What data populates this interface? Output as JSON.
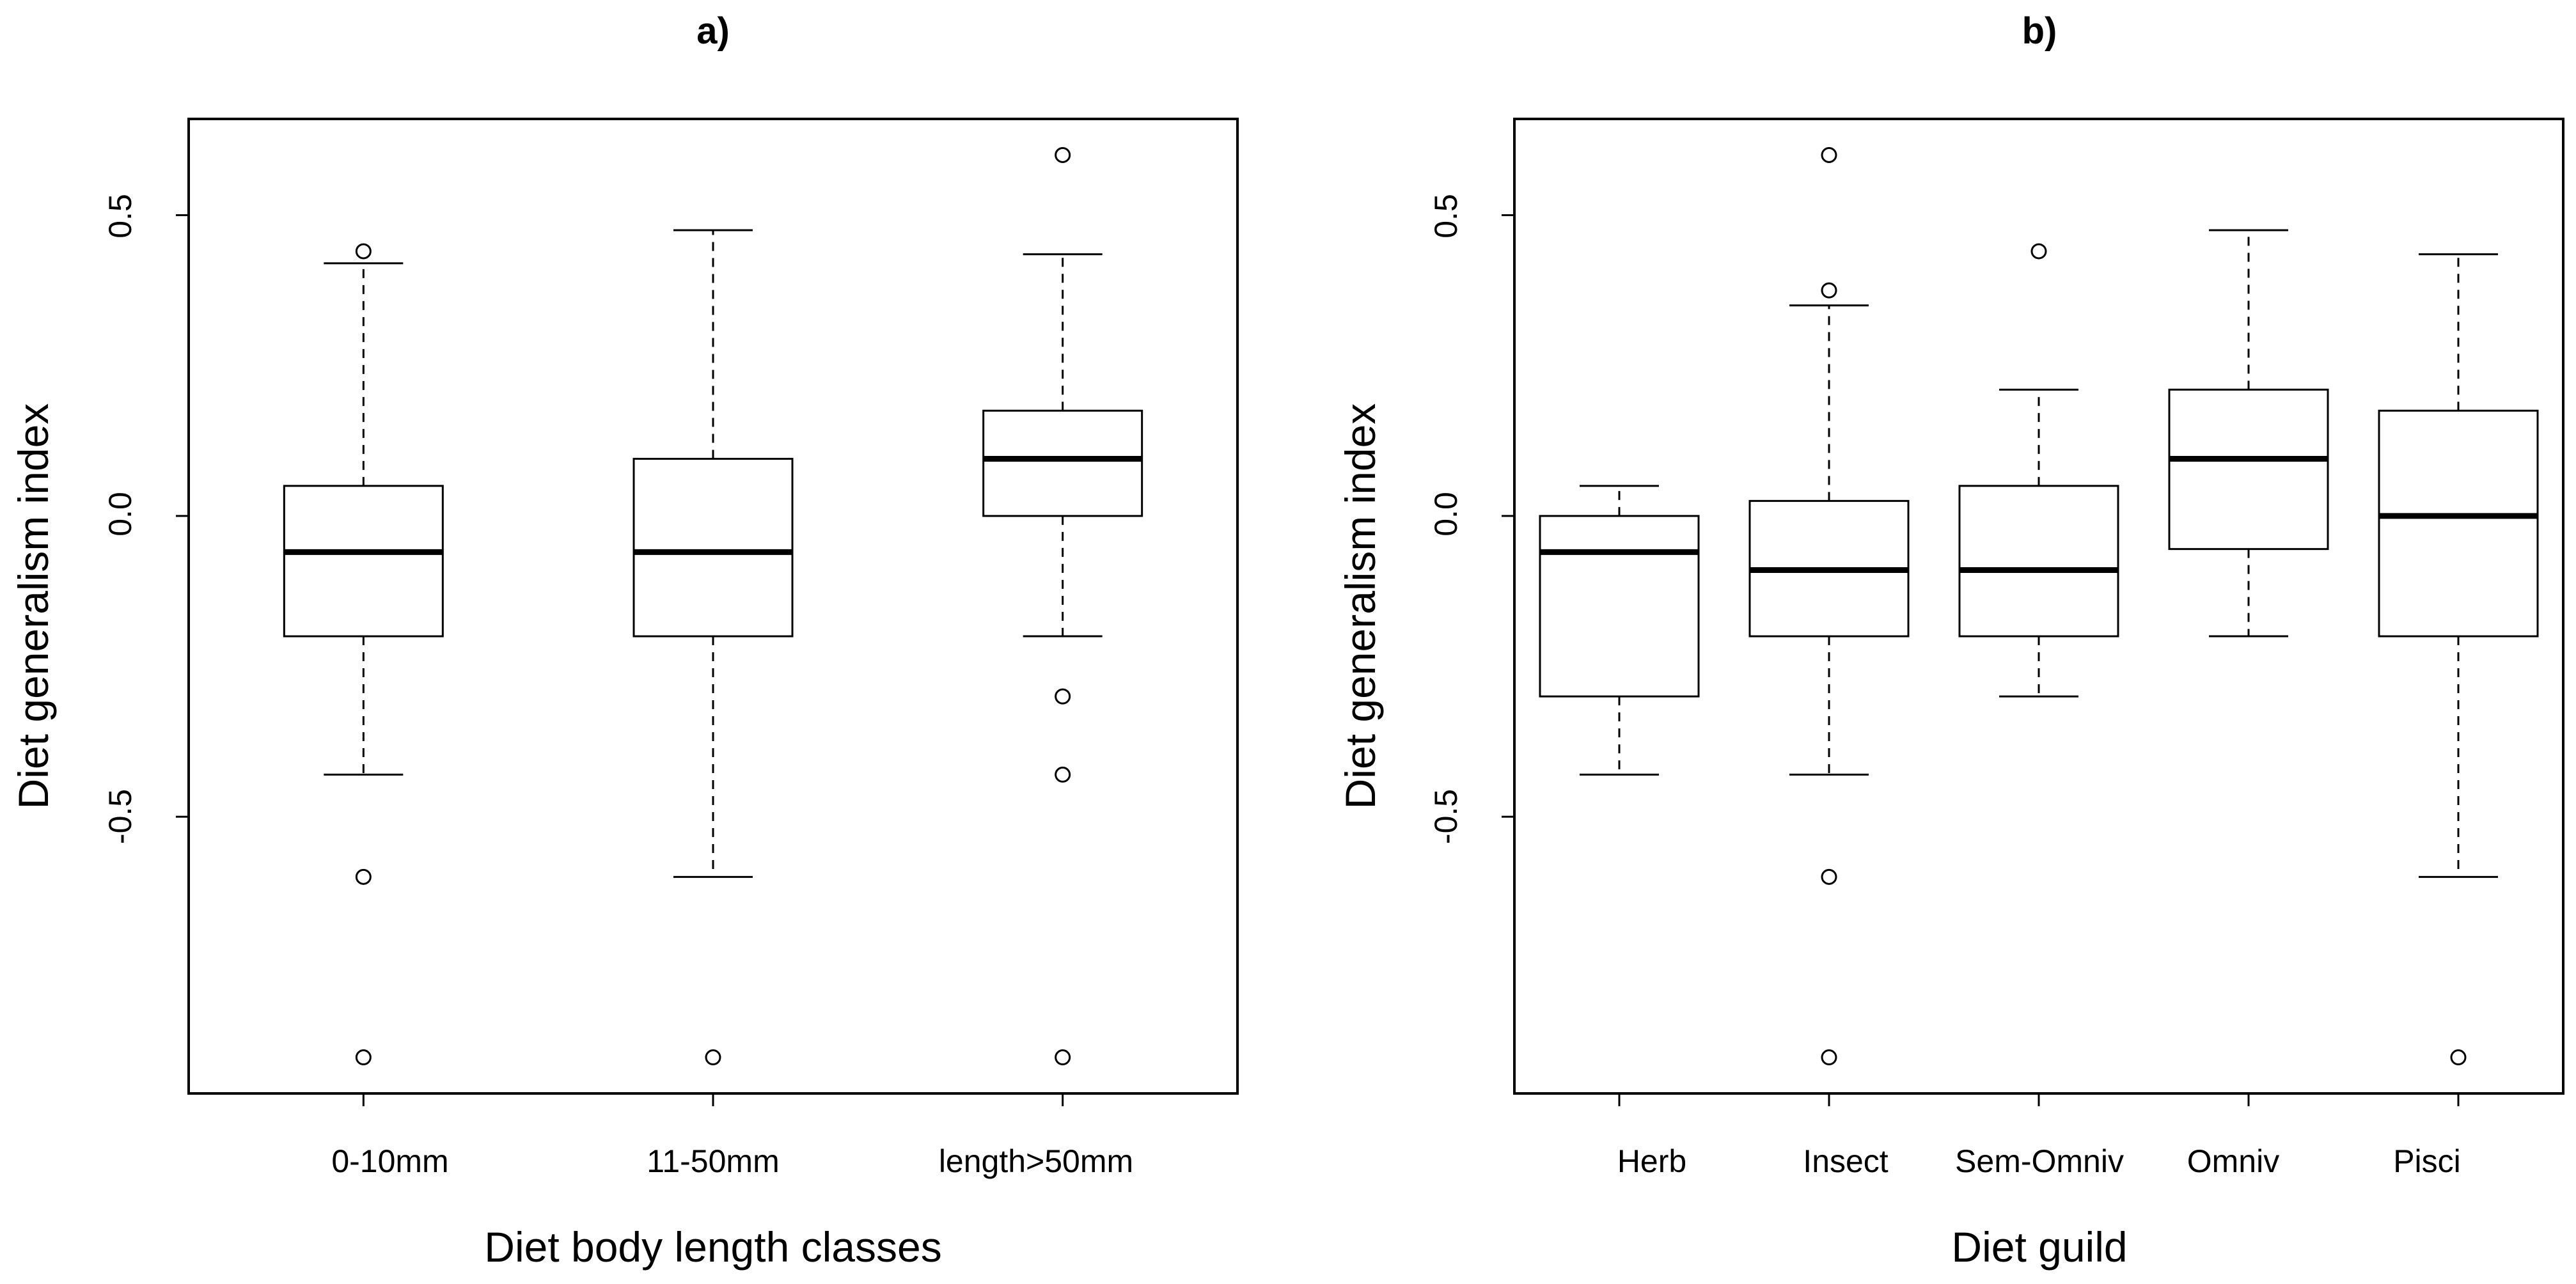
{
  "chart_data": [
    {
      "type": "boxplot",
      "title": "a)",
      "xlabel": "Diet body length classes",
      "ylabel": "Diet generalism index",
      "ylim": [
        -0.96,
        0.66
      ],
      "yticks": [
        0.5,
        0.0,
        -0.5
      ],
      "ytick_labels": [
        "0.5",
        "0.0",
        "-0.5"
      ],
      "categories": [
        "0-10mm",
        "11-50mm",
        "length>50mm"
      ],
      "boxes": [
        {
          "whisker_low": -0.43,
          "q1": -0.2,
          "median": -0.06,
          "q3": 0.05,
          "whisker_high": 0.42,
          "outliers": [
            0.44,
            -0.6,
            -0.9
          ]
        },
        {
          "whisker_low": -0.6,
          "q1": -0.2,
          "median": -0.06,
          "q3": 0.095,
          "whisker_high": 0.475,
          "outliers": [
            -0.9
          ]
        },
        {
          "whisker_low": -0.2,
          "q1": 0.0,
          "median": 0.095,
          "q3": 0.175,
          "whisker_high": 0.435,
          "outliers": [
            0.6,
            -0.3,
            -0.43,
            -0.9
          ]
        }
      ]
    },
    {
      "type": "boxplot",
      "title": "b)",
      "xlabel": "Diet guild",
      "ylabel": "Diet generalism index",
      "ylim": [
        -0.96,
        0.66
      ],
      "yticks": [
        0.5,
        0.0,
        -0.5
      ],
      "ytick_labels": [
        "0.5",
        "0.0",
        "-0.5"
      ],
      "categories": [
        "Herb",
        "Insect",
        "Sem-Omniv",
        "Omniv",
        "Pisci"
      ],
      "boxes": [
        {
          "whisker_low": -0.43,
          "q1": -0.3,
          "median": -0.06,
          "q3": 0.0,
          "whisker_high": 0.05,
          "outliers": []
        },
        {
          "whisker_low": -0.43,
          "q1": -0.2,
          "median": -0.09,
          "q3": 0.025,
          "whisker_high": 0.35,
          "outliers": [
            0.6,
            0.375,
            -0.6,
            -0.9
          ]
        },
        {
          "whisker_low": -0.3,
          "q1": -0.2,
          "median": -0.09,
          "q3": 0.05,
          "whisker_high": 0.21,
          "outliers": [
            0.44
          ]
        },
        {
          "whisker_low": -0.2,
          "q1": -0.055,
          "median": 0.095,
          "q3": 0.21,
          "whisker_high": 0.475,
          "outliers": []
        },
        {
          "whisker_low": -0.6,
          "q1": -0.2,
          "median": 0.0,
          "q3": 0.175,
          "whisker_high": 0.435,
          "outliers": [
            -0.9
          ]
        }
      ]
    }
  ]
}
